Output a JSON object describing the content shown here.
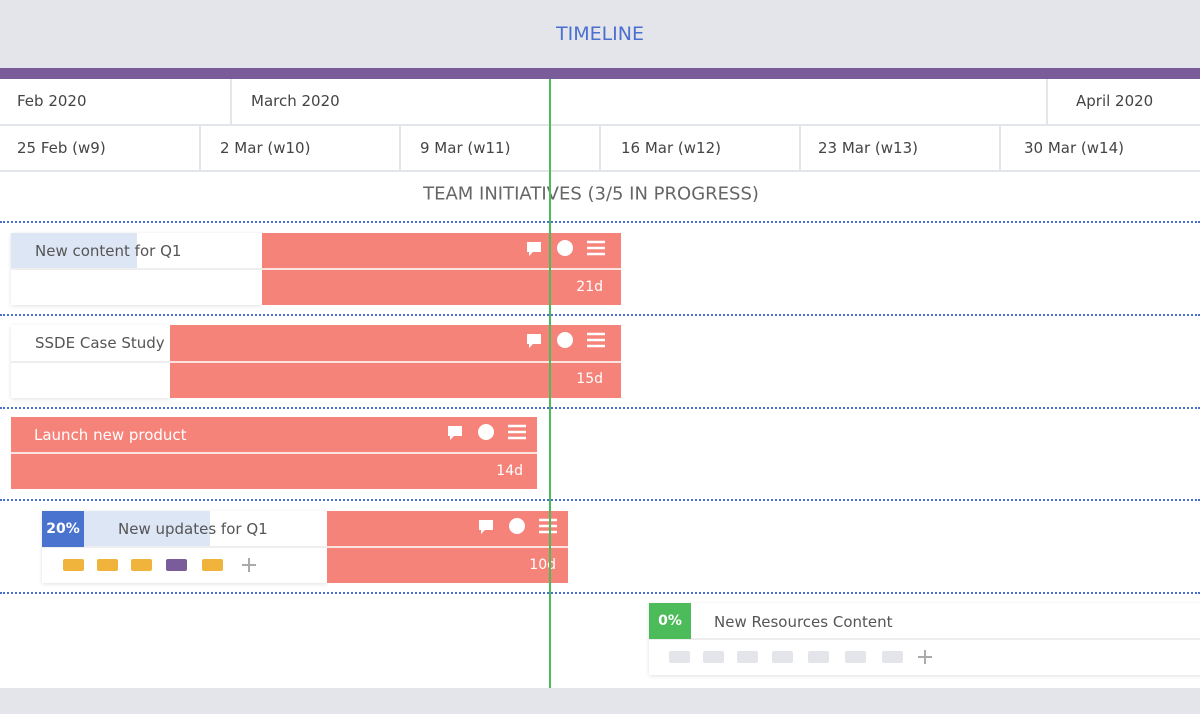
{
  "header": {
    "title": "TIMELINE"
  },
  "months": [
    "Feb 2020",
    "March 2020",
    "April 2020"
  ],
  "weeks": [
    "25 Feb (w9)",
    "2 Mar (w10)",
    "9 Mar (w11)",
    "16 Mar (w12)",
    "23 Mar (w13)",
    "30 Mar (w14)"
  ],
  "section": {
    "title": "TEAM INITIATIVES (3/5 IN PROGRESS)"
  },
  "tasks": [
    {
      "name": "New content for Q1",
      "duration": "21d"
    },
    {
      "name": "SSDE Case Study",
      "duration": "15d"
    },
    {
      "name": "Launch new product",
      "duration": "14d"
    },
    {
      "name": "New updates for Q1",
      "duration": "10d",
      "progress": "20%"
    },
    {
      "name": "New Resources Content",
      "progress": "0%"
    }
  ]
}
